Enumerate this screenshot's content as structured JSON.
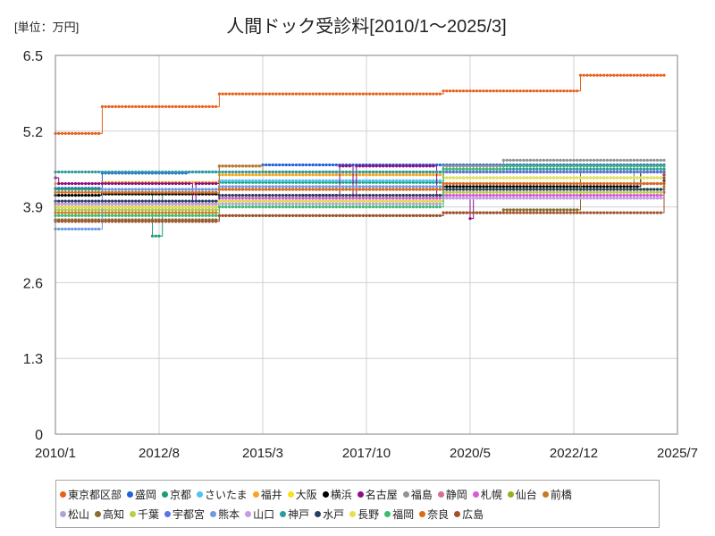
{
  "chart_data": {
    "type": "line",
    "title": "人間ドック受診料[2010/1～2025/3]",
    "unit_label": "[単位：万円]",
    "xlabel": "",
    "ylabel": "",
    "x_start": "2010/1",
    "x_end": "2025/7",
    "ylim": [
      0,
      6.5
    ],
    "y_ticks": [
      0,
      1.3,
      2.6,
      3.9,
      5.2,
      6.5
    ],
    "y_tick_labels": [
      "0",
      "1.3",
      "2.6",
      "3.9",
      "5.2",
      "6.5"
    ],
    "x_ticks": [
      "2010/1",
      "2012/8",
      "2015/3",
      "2017/10",
      "2020/5",
      "2022/12",
      "2025/7"
    ],
    "grid": true,
    "legend_position": "bottom",
    "series": [
      {
        "name": "東京都区部",
        "color": "#e8601c",
        "steps": [
          [
            "2010/1",
            5.16
          ],
          [
            "2011/3",
            5.62
          ],
          [
            "2014/2",
            5.84
          ],
          [
            "2019/9",
            5.89
          ],
          [
            "2023/2",
            6.16
          ],
          [
            "2025/3",
            6.16
          ]
        ]
      },
      {
        "name": "盛岡",
        "color": "#1f62d9",
        "steps": [
          [
            "2010/1",
            4.22
          ],
          [
            "2011/3",
            4.48
          ],
          [
            "2013/5",
            4.5
          ],
          [
            "2014/2",
            4.6
          ],
          [
            "2015/3",
            4.62
          ],
          [
            "2019/7",
            4.62
          ],
          [
            "2025/3",
            4.62
          ]
        ]
      },
      {
        "name": "京都",
        "color": "#1b9e77",
        "steps": [
          [
            "2010/1",
            4.2
          ],
          [
            "2012/6",
            3.4
          ],
          [
            "2012/9",
            4.2
          ],
          [
            "2014/2",
            4.32
          ],
          [
            "2019/9",
            4.5
          ],
          [
            "2024/6",
            4.2
          ],
          [
            "2025/3",
            4.2
          ]
        ]
      },
      {
        "name": "さいたま",
        "color": "#4fc3f7",
        "steps": [
          [
            "2010/1",
            4.1
          ],
          [
            "2011/3",
            4.2
          ],
          [
            "2014/2",
            4.35
          ],
          [
            "2019/9",
            4.4
          ],
          [
            "2025/3",
            4.4
          ]
        ]
      },
      {
        "name": "福井",
        "color": "#f5a623",
        "steps": [
          [
            "2010/1",
            4.3
          ],
          [
            "2011/3",
            4.32
          ],
          [
            "2014/2",
            4.45
          ],
          [
            "2019/9",
            4.5
          ],
          [
            "2025/3",
            4.5
          ]
        ]
      },
      {
        "name": "大阪",
        "color": "#f7e11a",
        "steps": [
          [
            "2010/1",
            3.95
          ],
          [
            "2014/2",
            4.1
          ],
          [
            "2019/9",
            4.3
          ],
          [
            "2025/3",
            4.3
          ]
        ]
      },
      {
        "name": "横浜",
        "color": "#000000",
        "steps": [
          [
            "2010/1",
            4.1
          ],
          [
            "2011/3",
            4.12
          ],
          [
            "2014/2",
            4.2
          ],
          [
            "2019/9",
            4.25
          ],
          [
            "2024/8",
            4.5
          ],
          [
            "2025/3",
            4.5
          ]
        ]
      },
      {
        "name": "名古屋",
        "color": "#8e0d8a",
        "steps": [
          [
            "2010/1",
            4.4
          ],
          [
            "2010/2",
            4.3
          ],
          [
            "2011/3",
            4.3
          ],
          [
            "2013/6",
            3.9
          ],
          [
            "2013/7",
            4.3
          ],
          [
            "2014/2",
            4.0
          ],
          [
            "2015/3",
            4.0
          ],
          [
            "2016/3",
            4.1
          ],
          [
            "2017/2",
            4.6
          ],
          [
            "2017/6",
            4.1
          ],
          [
            "2017/7",
            4.6
          ],
          [
            "2019/7",
            4.1
          ],
          [
            "2019/11",
            4.2
          ],
          [
            "2020/5",
            3.7
          ],
          [
            "2020/6",
            4.2
          ],
          [
            "2024/6",
            4.3
          ],
          [
            "2025/3",
            4.45
          ]
        ]
      },
      {
        "name": "福島",
        "color": "#939393",
        "steps": [
          [
            "2010/1",
            3.95
          ],
          [
            "2014/2",
            4.05
          ],
          [
            "2019/9",
            4.6
          ],
          [
            "2021/3",
            4.7
          ],
          [
            "2023/1",
            4.7
          ],
          [
            "2025/3",
            4.7
          ]
        ]
      },
      {
        "name": "静岡",
        "color": "#d8708a",
        "steps": [
          [
            "2010/1",
            3.9
          ],
          [
            "2014/2",
            4.0
          ],
          [
            "2019/9",
            4.1
          ],
          [
            "2025/3",
            4.15
          ]
        ]
      },
      {
        "name": "札幌",
        "color": "#d85ad8",
        "steps": [
          [
            "2010/1",
            3.95
          ],
          [
            "2014/2",
            4.05
          ],
          [
            "2019/9",
            4.1
          ],
          [
            "2025/3",
            4.35
          ]
        ]
      },
      {
        "name": "仙台",
        "color": "#8fb31e",
        "steps": [
          [
            "2010/1",
            3.85
          ],
          [
            "2014/2",
            4.0
          ],
          [
            "2019/9",
            4.2
          ],
          [
            "2025/3",
            4.25
          ]
        ]
      },
      {
        "name": "前橋",
        "color": "#c77a22",
        "steps": [
          [
            "2010/1",
            3.8
          ],
          [
            "2014/2",
            4.6
          ],
          [
            "2015/3",
            4.5
          ],
          [
            "2019/9",
            4.5
          ],
          [
            "2025/3",
            4.3
          ]
        ]
      },
      {
        "name": "松山",
        "color": "#b3a2d2",
        "steps": [
          [
            "2010/1",
            3.9
          ],
          [
            "2014/2",
            3.95
          ],
          [
            "2019/9",
            4.05
          ],
          [
            "2025/3",
            4.2
          ]
        ]
      },
      {
        "name": "高知",
        "color": "#8b6d2f",
        "steps": [
          [
            "2010/1",
            3.68
          ],
          [
            "2014/2",
            3.75
          ],
          [
            "2019/9",
            3.8
          ],
          [
            "2021/3",
            3.85
          ],
          [
            "2023/2",
            4.5
          ],
          [
            "2025/3",
            4.5
          ]
        ]
      },
      {
        "name": "千葉",
        "color": "#b7cf48",
        "steps": [
          [
            "2010/1",
            3.85
          ],
          [
            "2014/2",
            4.0
          ],
          [
            "2019/9",
            4.15
          ],
          [
            "2025/3",
            4.3
          ]
        ]
      },
      {
        "name": "宇都宮",
        "color": "#5b74e3",
        "steps": [
          [
            "2010/1",
            3.9
          ],
          [
            "2014/2",
            4.0
          ],
          [
            "2019/9",
            4.5
          ],
          [
            "2025/3",
            4.55
          ]
        ]
      },
      {
        "name": "熊本",
        "color": "#6b9be8",
        "steps": [
          [
            "2010/1",
            3.52
          ],
          [
            "2011/3",
            4.2
          ],
          [
            "2014/2",
            4.25
          ],
          [
            "2019/9",
            4.3
          ],
          [
            "2025/3",
            4.35
          ]
        ]
      },
      {
        "name": "山口",
        "color": "#c39be6",
        "steps": [
          [
            "2010/1",
            3.95
          ],
          [
            "2014/2",
            4.0
          ],
          [
            "2019/9",
            4.05
          ],
          [
            "2025/3",
            4.3
          ]
        ]
      },
      {
        "name": "神戸",
        "color": "#2c9a9f",
        "steps": [
          [
            "2010/1",
            4.5
          ],
          [
            "2011/3",
            4.5
          ],
          [
            "2014/2",
            4.5
          ],
          [
            "2019/9",
            4.55
          ],
          [
            "2025/3",
            4.55
          ]
        ]
      },
      {
        "name": "水戸",
        "color": "#283e66",
        "steps": [
          [
            "2010/1",
            4.0
          ],
          [
            "2014/2",
            4.1
          ],
          [
            "2019/9",
            4.2
          ],
          [
            "2025/3",
            4.35
          ]
        ]
      },
      {
        "name": "長野",
        "color": "#e6e04a",
        "steps": [
          [
            "2010/1",
            3.9
          ],
          [
            "2014/2",
            4.0
          ],
          [
            "2019/9",
            4.4
          ],
          [
            "2025/3",
            4.4
          ]
        ]
      },
      {
        "name": "福岡",
        "color": "#3dbb6f",
        "steps": [
          [
            "2010/1",
            3.75
          ],
          [
            "2014/2",
            3.9
          ],
          [
            "2019/9",
            4.55
          ],
          [
            "2021/3",
            4.6
          ],
          [
            "2025/3",
            4.6
          ]
        ]
      },
      {
        "name": "奈良",
        "color": "#dd6a15",
        "steps": [
          [
            "2010/1",
            4.15
          ],
          [
            "2014/2",
            4.2
          ],
          [
            "2019/9",
            4.3
          ],
          [
            "2025/3",
            4.3
          ]
        ]
      },
      {
        "name": "広島",
        "color": "#a0522d",
        "steps": [
          [
            "2010/1",
            3.65
          ],
          [
            "2014/2",
            3.75
          ],
          [
            "2019/9",
            3.8
          ],
          [
            "2025/3",
            4.4
          ]
        ]
      }
    ]
  }
}
